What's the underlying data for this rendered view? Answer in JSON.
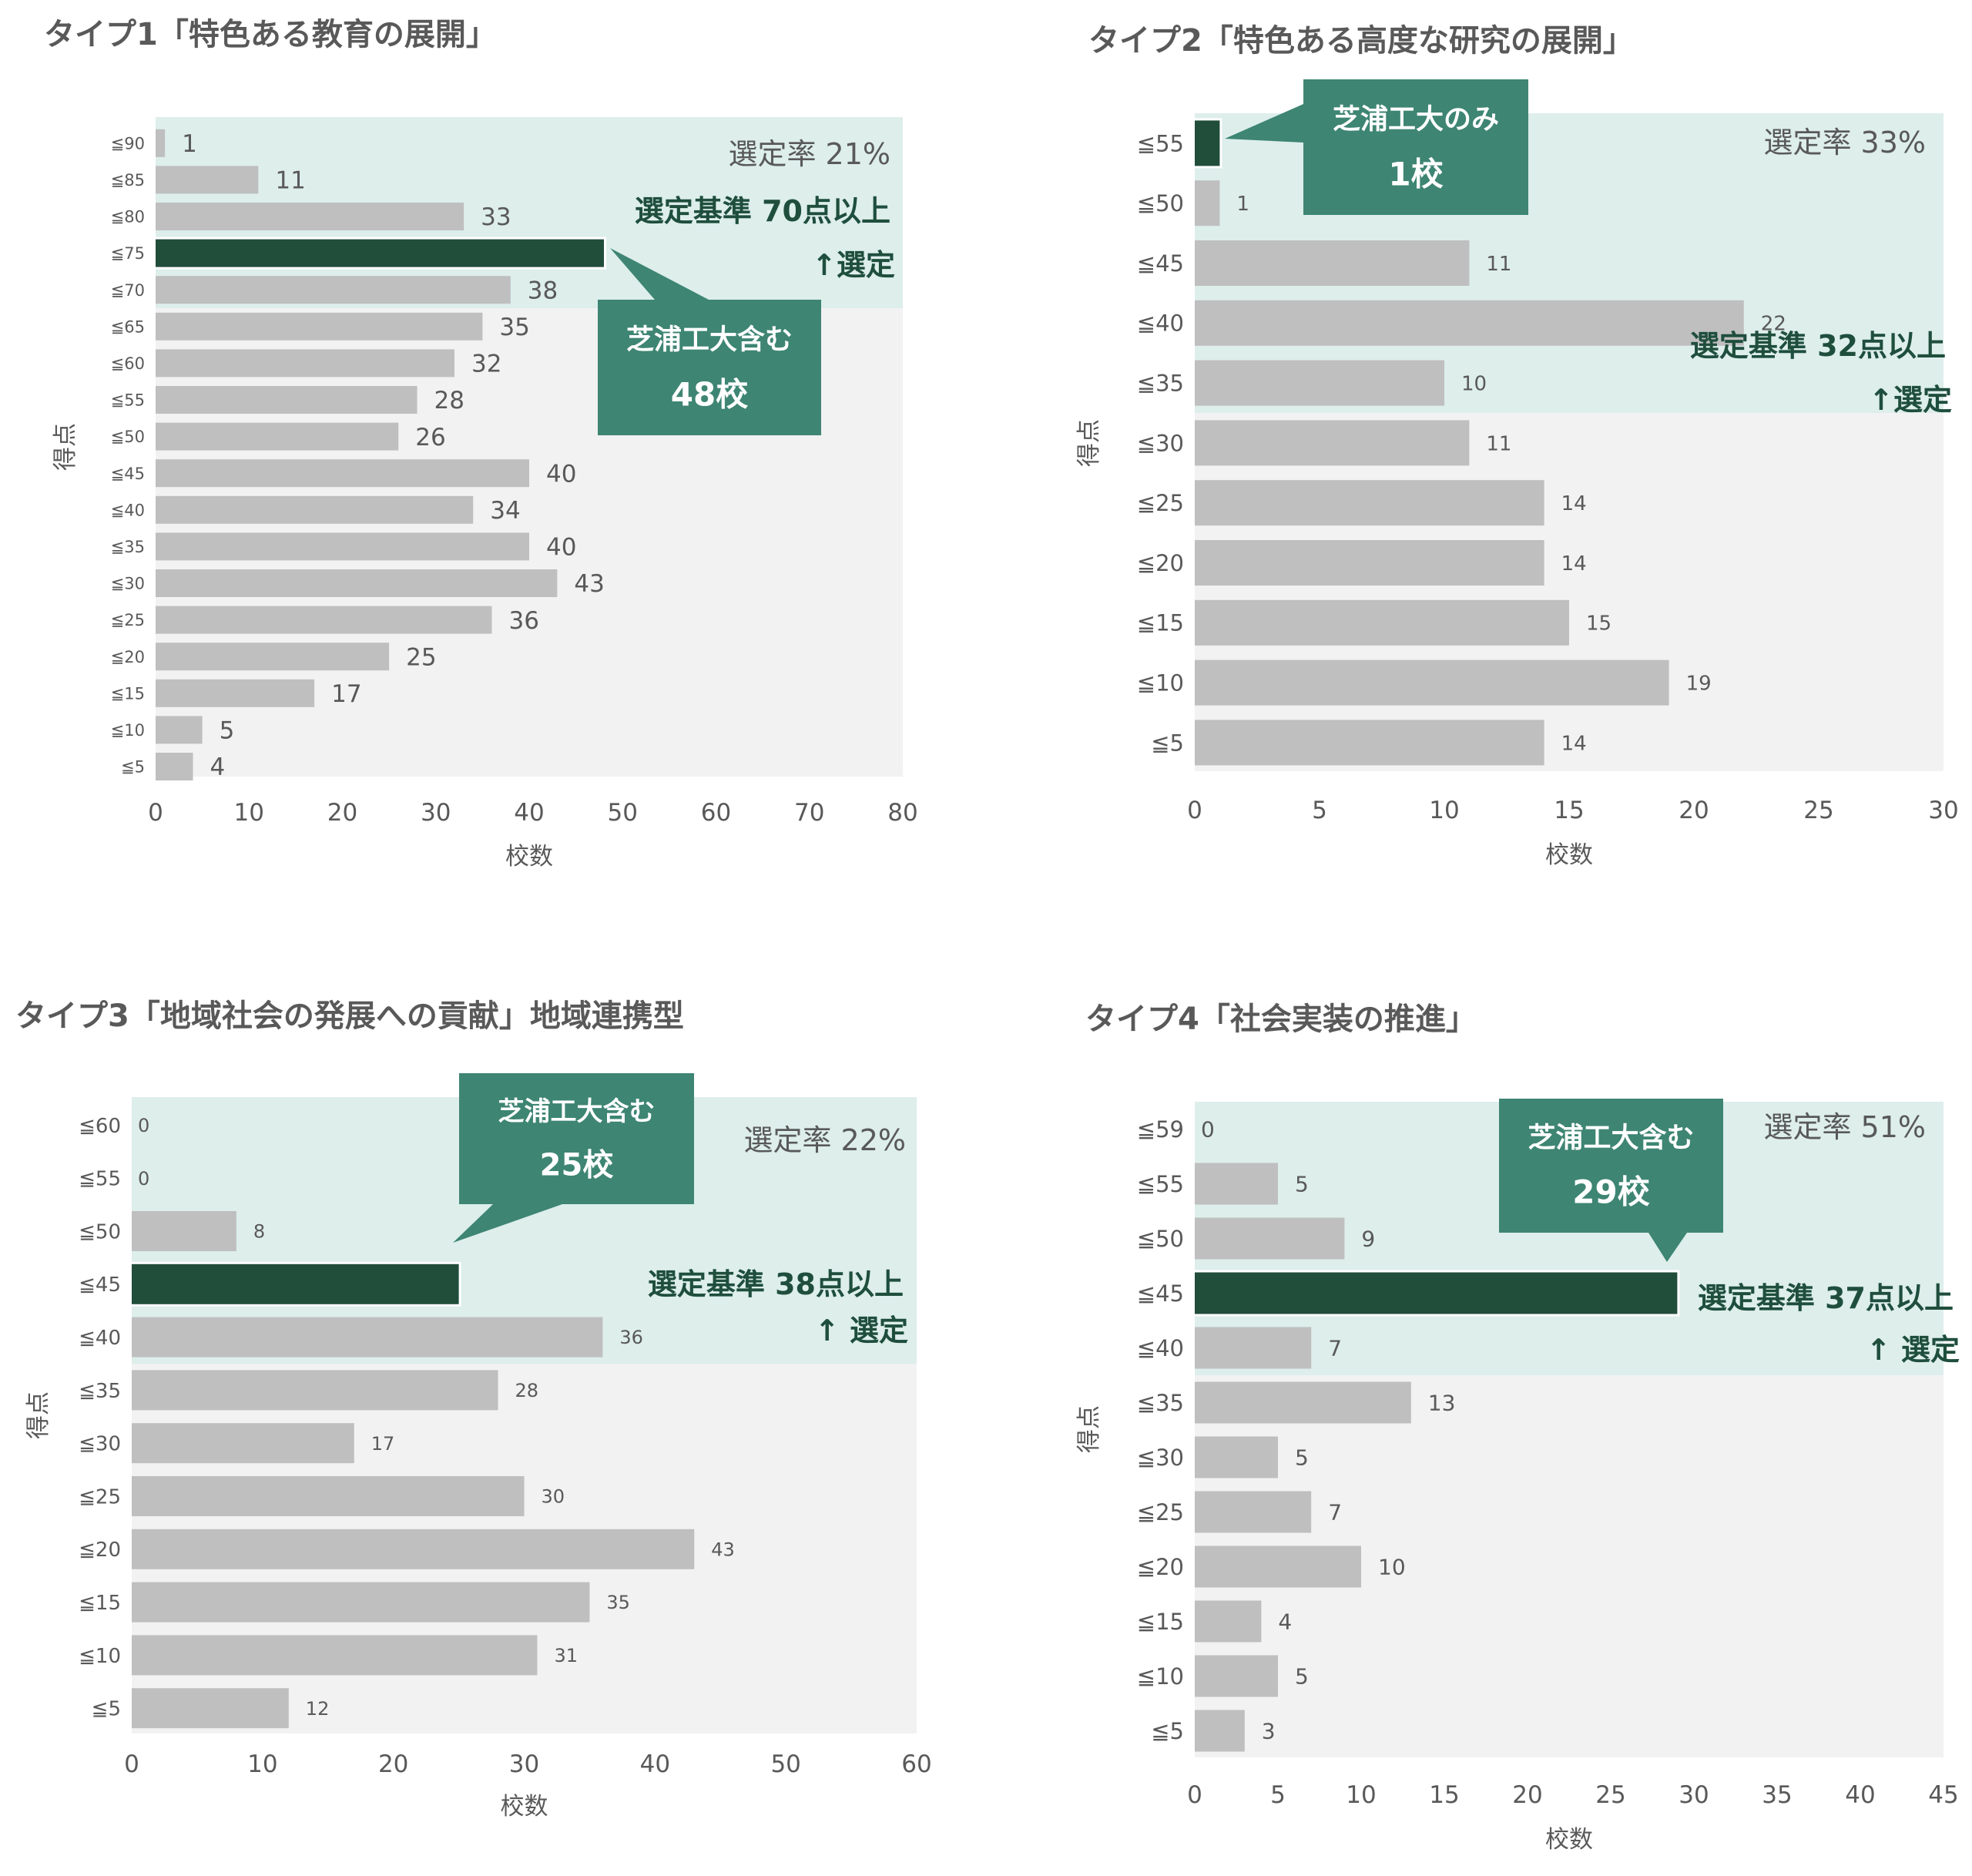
{
  "colors": {
    "bar": "#bfbfbf",
    "highlight_bar": "#214d3b",
    "selected_band": "#ddeeeb",
    "plot_bg": "#f2f2f2",
    "callout": "#3e8573",
    "criterion_text": "#1f4e3d"
  },
  "chart_data": [
    {
      "type": "bar",
      "orientation": "horizontal",
      "title": "タイプ1「特色ある教育の展開」",
      "xlabel": "校数",
      "ylabel": "得点",
      "xlim": [
        0,
        80
      ],
      "xticks": [
        "0",
        "10",
        "20",
        "30",
        "40",
        "50",
        "60",
        "70",
        "80"
      ],
      "categories": [
        "≦90",
        "≦85",
        "≦80",
        "≦75",
        "≦70",
        "≦65",
        "≦60",
        "≦55",
        "≦50",
        "≦45",
        "≦40",
        "≦35",
        "≦30",
        "≦25",
        "≦20",
        "≦15",
        "≦10",
        "≦5"
      ],
      "values": [
        1,
        11,
        33,
        48,
        38,
        35,
        32,
        28,
        26,
        40,
        34,
        40,
        43,
        36,
        25,
        17,
        5,
        4
      ],
      "highlight_index": 3,
      "value_label_hidden_index": 3,
      "selected_rows": 5,
      "rate_text": "選定率 21%",
      "criterion_text": "選定基準 70点以上",
      "selected_text": "↑選定",
      "callout_line1": "芝浦工大含む",
      "callout_line2": "48校"
    },
    {
      "type": "bar",
      "orientation": "horizontal",
      "title": "タイプ2「特色ある高度な研究の展開」",
      "xlabel": "校数",
      "ylabel": "得点",
      "xlim": [
        0,
        30
      ],
      "xticks": [
        "0",
        "5",
        "10",
        "15",
        "20",
        "25",
        "30"
      ],
      "categories": [
        "≦55",
        "≦50",
        "≦45",
        "≦40",
        "≦35",
        "≦30",
        "≦25",
        "≦20",
        "≦15",
        "≦10",
        "≦5"
      ],
      "values": [
        1,
        1,
        11,
        22,
        10,
        11,
        14,
        14,
        15,
        19,
        14
      ],
      "highlight_index": 0,
      "value_label_hidden_index": 0,
      "selected_rows": 5,
      "rate_text": "選定率 33%",
      "criterion_text": "選定基準 32点以上",
      "selected_text": "↑選定",
      "callout_line1": "芝浦工大のみ",
      "callout_line2": "1校"
    },
    {
      "type": "bar",
      "orientation": "horizontal",
      "title": "タイプ3「地域社会の発展への貢献」地域連携型",
      "xlabel": "校数",
      "ylabel": "得点",
      "xlim": [
        0,
        60
      ],
      "xticks": [
        "0",
        "10",
        "20",
        "30",
        "40",
        "50",
        "60"
      ],
      "categories": [
        "≦60",
        "≦55",
        "≦50",
        "≦45",
        "≦40",
        "≦35",
        "≦30",
        "≦25",
        "≦20",
        "≦15",
        "≦10",
        "≦5"
      ],
      "values": [
        0,
        0,
        8,
        25,
        36,
        28,
        17,
        30,
        43,
        35,
        31,
        12
      ],
      "highlight_index": 3,
      "value_label_hidden_index": 3,
      "selected_rows": 5,
      "rate_text": "選定率 22%",
      "criterion_text": "選定基準 38点以上",
      "selected_text": "↑ 選定",
      "callout_line1": "芝浦工大含む",
      "callout_line2": "25校"
    },
    {
      "type": "bar",
      "orientation": "horizontal",
      "title": "タイプ4「社会実装の推進」",
      "xlabel": "校数",
      "ylabel": "得点",
      "xlim": [
        0,
        45
      ],
      "xticks": [
        "0",
        "5",
        "10",
        "15",
        "20",
        "25",
        "30",
        "35",
        "40",
        "45"
      ],
      "categories": [
        "≦59",
        "≦55",
        "≦50",
        "≦45",
        "≦40",
        "≦35",
        "≦30",
        "≦25",
        "≦20",
        "≦15",
        "≦10",
        "≦5"
      ],
      "values": [
        0,
        5,
        9,
        29,
        7,
        13,
        5,
        7,
        10,
        4,
        5,
        3
      ],
      "highlight_index": 3,
      "value_label_hidden_index": 3,
      "selected_rows": 5,
      "rate_text": "選定率 51%",
      "criterion_text": "選定基準 37点以上",
      "selected_text": "↑ 選定",
      "callout_line1": "芝浦工大含む",
      "callout_line2": "29校"
    }
  ]
}
